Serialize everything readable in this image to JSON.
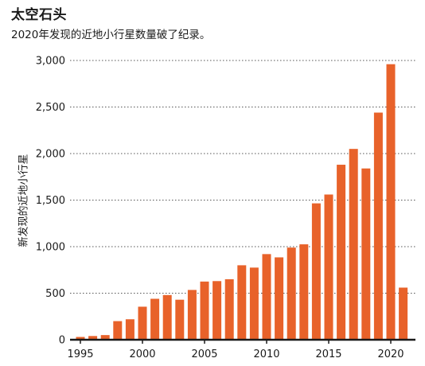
{
  "chart_data": {
    "type": "bar",
    "title": "太空石头",
    "subtitle": "2020年发现的近地小行星数量破了纪录。",
    "ylabel": "新发现的近地小行星",
    "xlabel": "",
    "ylim": [
      0,
      3000
    ],
    "yticks": [
      0,
      500,
      1000,
      1500,
      2000,
      2500,
      3000
    ],
    "ytick_labels": [
      "0",
      "500",
      "1,000",
      "1,500",
      "2,000",
      "2,500",
      "3,000"
    ],
    "xticks": [
      1995,
      2000,
      2005,
      2010,
      2015,
      2020
    ],
    "xtick_labels": [
      "1995",
      "2000",
      "2005",
      "2010",
      "2015",
      "2020"
    ],
    "categories": [
      1995,
      1996,
      1997,
      1998,
      1999,
      2000,
      2001,
      2002,
      2003,
      2004,
      2005,
      2006,
      2007,
      2008,
      2009,
      2010,
      2011,
      2012,
      2013,
      2014,
      2015,
      2016,
      2017,
      2018,
      2019,
      2020,
      2021
    ],
    "values": [
      30,
      40,
      50,
      200,
      220,
      355,
      440,
      480,
      430,
      535,
      625,
      630,
      650,
      800,
      775,
      920,
      885,
      990,
      1025,
      1465,
      1560,
      1880,
      2050,
      1840,
      2440,
      2960,
      560
    ],
    "grid": true,
    "grid_style": "dotted-horizontal",
    "bar_color": "#E8622A",
    "axis_color": "#1a1a1a",
    "grid_color": "#555555"
  }
}
